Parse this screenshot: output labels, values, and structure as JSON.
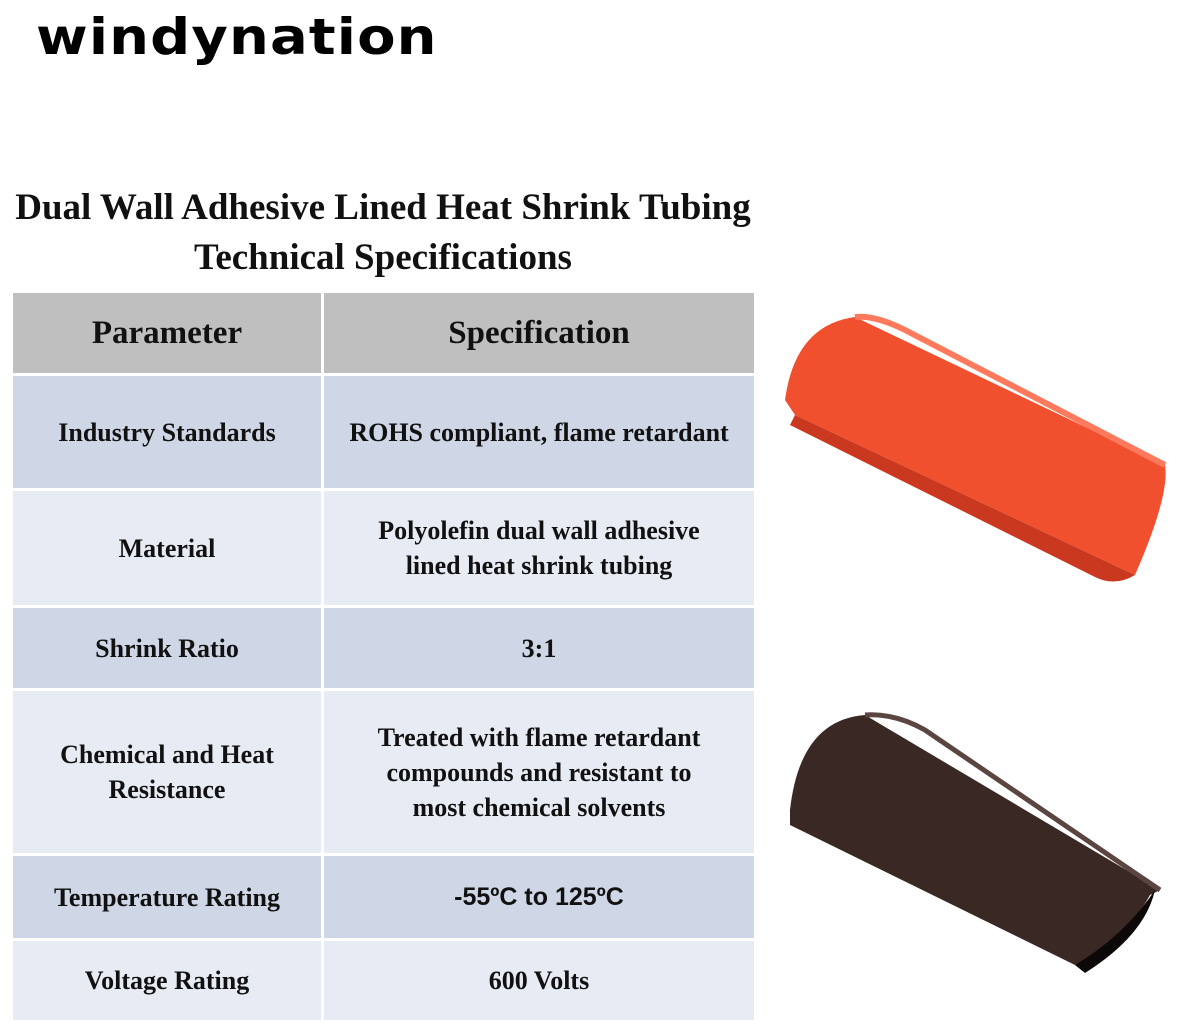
{
  "brand": {
    "logo": "windynation"
  },
  "title": "Dual Wall Adhesive Lined Heat Shrink Tubing Technical Specifications",
  "table": {
    "headers": [
      "Parameter",
      "Specification"
    ],
    "rows": [
      {
        "parameter": "Industry Standards",
        "specification": "ROHS compliant, flame retardant"
      },
      {
        "parameter": "Material",
        "specification": "Polyolefin dual wall adhesive lined heat shrink tubing"
      },
      {
        "parameter": "Shrink Ratio",
        "specification": "3:1"
      },
      {
        "parameter": "Chemical and Heat Resistance",
        "specification": "Treated with flame retardant compounds and resistant to most chemical solvents"
      },
      {
        "parameter": "Temperature Rating",
        "specification": "-55ºC to 125ºC"
      },
      {
        "parameter": "Voltage Rating",
        "specification": "600 Volts"
      }
    ]
  },
  "images": [
    {
      "name": "red-heat-shrink-tube",
      "color": "#f0502e"
    },
    {
      "name": "black-heat-shrink-tube",
      "color": "#3a2824"
    }
  ]
}
